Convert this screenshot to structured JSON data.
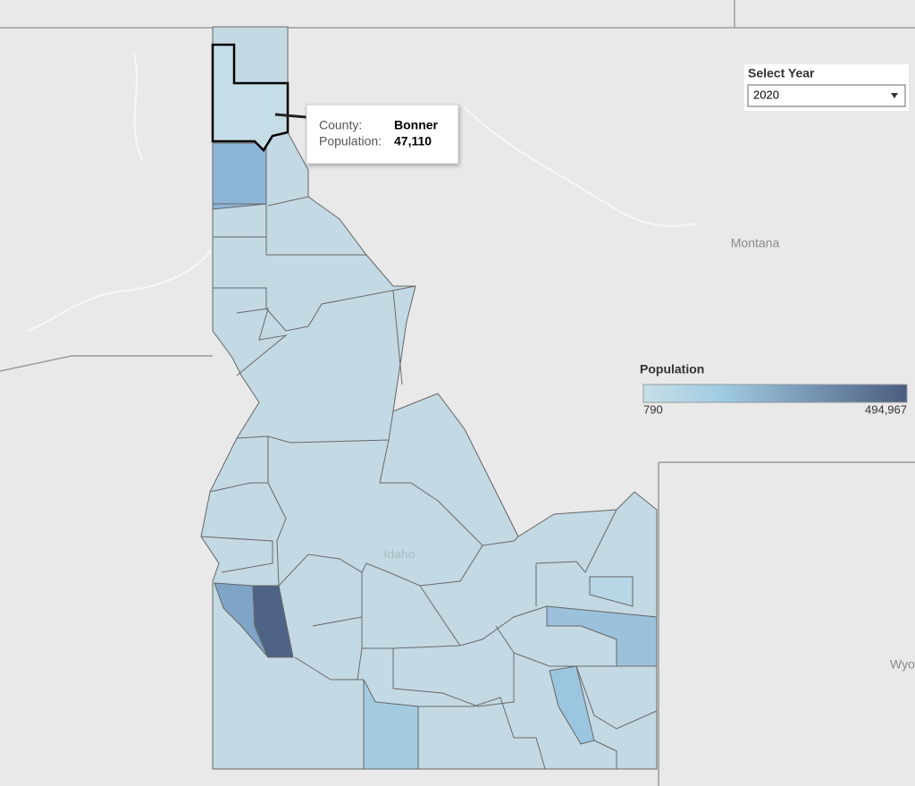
{
  "filter": {
    "label": "Select Year",
    "selected": "2020"
  },
  "map": {
    "place_labels": [
      "Montana",
      "Idaho",
      "Wyo"
    ]
  },
  "legend": {
    "title": "Population",
    "min_label": "790",
    "max_label": "494,967"
  },
  "tooltip": {
    "rows": [
      {
        "label": "County:",
        "value": "Bonner"
      },
      {
        "label": "Population:",
        "value": "47,110"
      }
    ]
  }
}
